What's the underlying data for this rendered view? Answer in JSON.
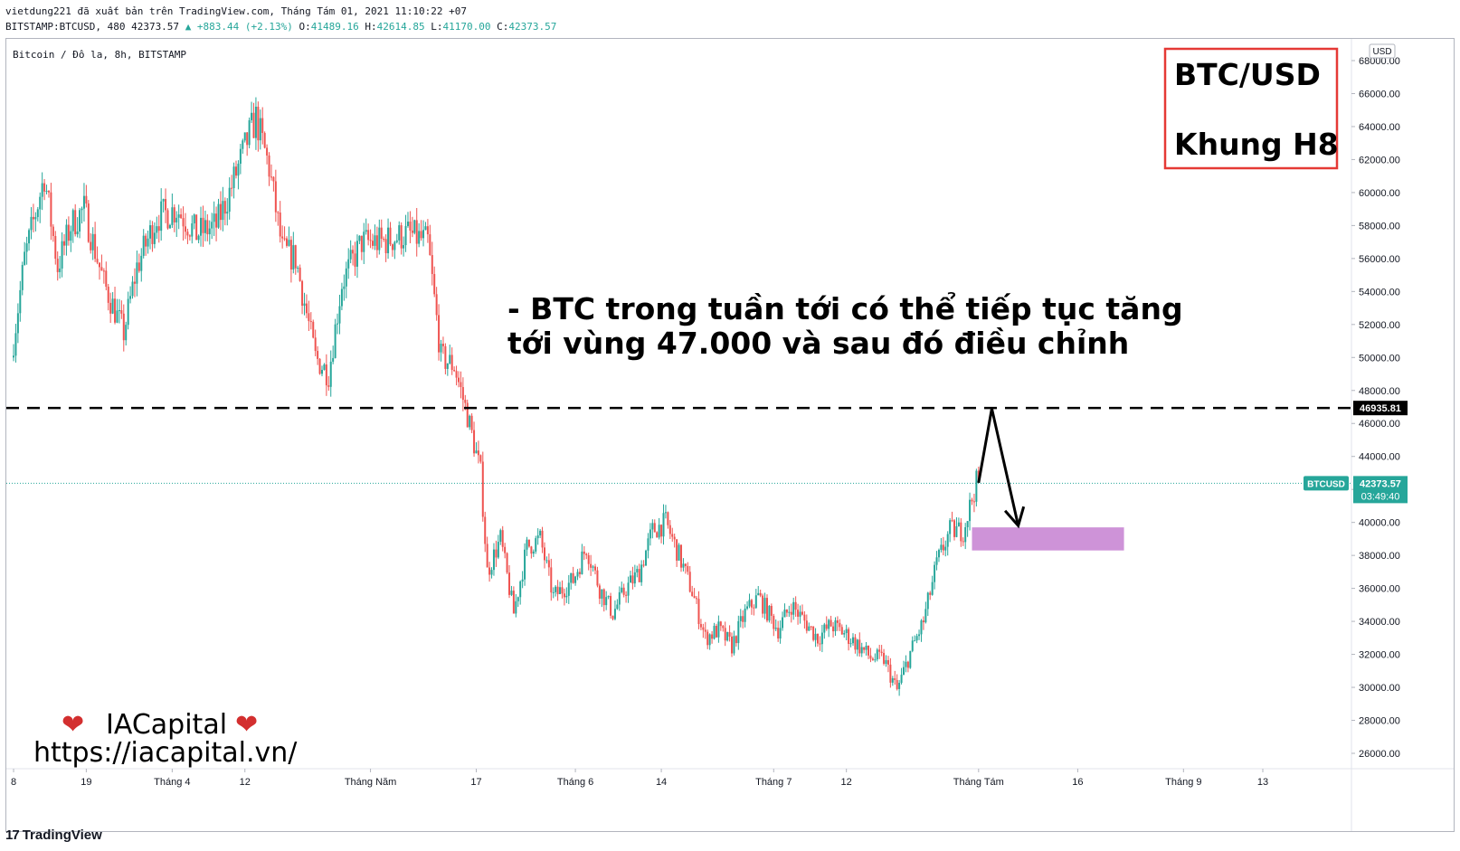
{
  "header": {
    "publisher_line": "vietdung221 đã xuất bản trên TradingView.com, Tháng Tám 01, 2021 11:10:22 +07",
    "symbol_prefix": "BITSTAMP:BTCUSD, 480 42373.57",
    "change_text": "▲ +883.44 (+2.13%)",
    "o_label": "O:",
    "o_value": "41489.16",
    "h_label": "H:",
    "h_value": "42614.85",
    "l_label": "L:",
    "l_value": "41170.00",
    "c_label": "C:",
    "c_value": "42373.57"
  },
  "chart_data": {
    "type": "candlestick",
    "title": "Bitcoin / Đô la, 8h, BITSTAMP",
    "currency": "USD",
    "symbol": "BTCUSD",
    "last_price": "42373.57",
    "countdown": "03:49:40",
    "resistance_level": "46935.81",
    "ylim": [
      24500,
      69000
    ],
    "y_ticks": [
      26000,
      28000,
      30000,
      32000,
      34000,
      36000,
      38000,
      40000,
      42000,
      44000,
      46000,
      48000,
      50000,
      52000,
      54000,
      56000,
      58000,
      60000,
      62000,
      64000,
      66000,
      68000
    ],
    "y_tick_labels": [
      "26000.00",
      "28000.00",
      "30000.00",
      "32000.00",
      "34000.00",
      "36000.00",
      "38000.00",
      "40000.00",
      "42000.00",
      "44000.00",
      "46000.00",
      "48000.00",
      "50000.00",
      "52000.00",
      "54000.00",
      "56000.00",
      "58000.00",
      "60000.00",
      "62000.00",
      "64000.00",
      "66000.00",
      "68000.00"
    ],
    "x_range": [
      "2021-03-08",
      "2021-09-17"
    ],
    "x_ticks": [
      {
        "date": "2021-03-08",
        "label": "8"
      },
      {
        "date": "2021-03-19",
        "label": "19"
      },
      {
        "date": "2021-04-01",
        "label": "Tháng 4"
      },
      {
        "date": "2021-04-12",
        "label": "12"
      },
      {
        "date": "2021-05-01",
        "label": "Tháng Năm"
      },
      {
        "date": "2021-05-17",
        "label": "17"
      },
      {
        "date": "2021-06-01",
        "label": "Tháng 6"
      },
      {
        "date": "2021-06-14",
        "label": "14"
      },
      {
        "date": "2021-07-01",
        "label": "Tháng 7"
      },
      {
        "date": "2021-07-12",
        "label": "12"
      },
      {
        "date": "2021-08-01",
        "label": "Tháng Tám"
      },
      {
        "date": "2021-08-16",
        "label": "16"
      },
      {
        "date": "2021-09-01",
        "label": "Tháng 9"
      },
      {
        "date": "2021-09-13",
        "label": "13"
      }
    ],
    "candle_interval": "8h",
    "price_path": [
      [
        "2021-03-08",
        50000
      ],
      [
        "2021-03-10",
        56000
      ],
      [
        "2021-03-13",
        61000
      ],
      [
        "2021-03-15",
        55500
      ],
      [
        "2021-03-17",
        58000
      ],
      [
        "2021-03-19",
        59000
      ],
      [
        "2021-03-22",
        54500
      ],
      [
        "2021-03-25",
        51500
      ],
      [
        "2021-03-27",
        55500
      ],
      [
        "2021-03-30",
        58500
      ],
      [
        "2021-04-02",
        59000
      ],
      [
        "2021-04-05",
        57500
      ],
      [
        "2021-04-08",
        58000
      ],
      [
        "2021-04-10",
        60000
      ],
      [
        "2021-04-13",
        63500
      ],
      [
        "2021-04-14",
        64500
      ],
      [
        "2021-04-16",
        61500
      ],
      [
        "2021-04-18",
        56500
      ],
      [
        "2021-04-20",
        56000
      ],
      [
        "2021-04-23",
        50000
      ],
      [
        "2021-04-25",
        49000
      ],
      [
        "2021-04-27",
        54500
      ],
      [
        "2021-04-30",
        57000
      ],
      [
        "2021-05-03",
        57000
      ],
      [
        "2021-05-07",
        57500
      ],
      [
        "2021-05-10",
        57000
      ],
      [
        "2021-05-12",
        50000
      ],
      [
        "2021-05-14",
        49500
      ],
      [
        "2021-05-16",
        46500
      ],
      [
        "2021-05-18",
        43000
      ],
      [
        "2021-05-19",
        37000
      ],
      [
        "2021-05-21",
        39000
      ],
      [
        "2021-05-23",
        34500
      ],
      [
        "2021-05-25",
        38500
      ],
      [
        "2021-05-27",
        39000
      ],
      [
        "2021-05-29",
        35500
      ],
      [
        "2021-06-01",
        36500
      ],
      [
        "2021-06-03",
        38500
      ],
      [
        "2021-06-05",
        36000
      ],
      [
        "2021-06-07",
        34500
      ],
      [
        "2021-06-09",
        36000
      ],
      [
        "2021-06-11",
        37000
      ],
      [
        "2021-06-13",
        39500
      ],
      [
        "2021-06-15",
        40000
      ],
      [
        "2021-06-17",
        38000
      ],
      [
        "2021-06-19",
        35800
      ],
      [
        "2021-06-21",
        33000
      ],
      [
        "2021-06-23",
        33500
      ],
      [
        "2021-06-25",
        32500
      ],
      [
        "2021-06-27",
        34500
      ],
      [
        "2021-06-29",
        35500
      ],
      [
        "2021-07-02",
        33500
      ],
      [
        "2021-07-04",
        35000
      ],
      [
        "2021-07-06",
        34000
      ],
      [
        "2021-07-08",
        33000
      ],
      [
        "2021-07-10",
        33800
      ],
      [
        "2021-07-12",
        33300
      ],
      [
        "2021-07-14",
        32600
      ],
      [
        "2021-07-16",
        31800
      ],
      [
        "2021-07-18",
        31700
      ],
      [
        "2021-07-20",
        29800
      ],
      [
        "2021-07-22",
        32100
      ],
      [
        "2021-07-24",
        34000
      ],
      [
        "2021-07-26",
        37500
      ],
      [
        "2021-07-28",
        39500
      ],
      [
        "2021-07-30",
        39500
      ],
      [
        "2021-08-01",
        42400
      ]
    ],
    "ascending_path_note": "",
    "annotations": {
      "box_title": "BTC/USD",
      "box_subtitle": "Khung H8",
      "main_text_line1": "- BTC trong tuần tới có thể tiếp tục tăng",
      "main_text_line2": "tới vùng 47.000 và sau đó điều chỉnh",
      "projection": [
        [
          "2021-08-01",
          42400
        ],
        [
          "2021-08-03",
          46900
        ],
        [
          "2021-08-07",
          39800
        ]
      ],
      "zone": {
        "from": "2021-07-31",
        "to": "2021-08-23",
        "low": 38300,
        "high": 39700
      },
      "zone_color": "#ce93d8"
    },
    "colors": {
      "up": "#26a69a",
      "down": "#ef5350",
      "resistance": "#000000"
    }
  },
  "watermark": {
    "heart_left": "❤",
    "text": "IACapital",
    "heart_right": "❤",
    "url": "https://iacapital.vn/"
  },
  "footer": {
    "brand_logo": "17",
    "brand_name": "TradingView"
  }
}
